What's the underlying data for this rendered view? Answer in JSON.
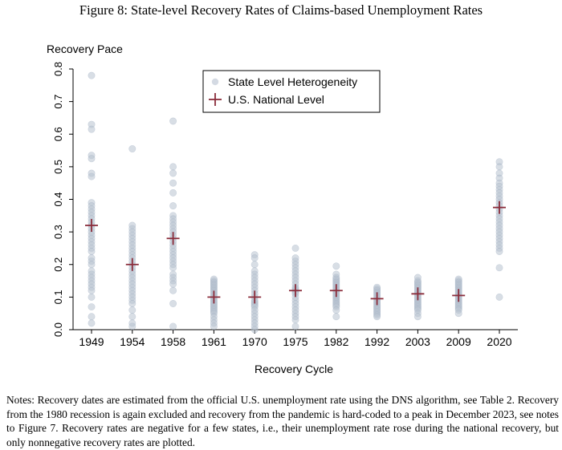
{
  "figure": {
    "title": "Figure 8: State-level Recovery Rates of Claims-based Unemployment Rates",
    "notes": "Notes: Recovery dates are estimated from the official U.S. unemployment rate using the DNS algorithm, see Table 2. Recovery from the 1980 recession is again excluded and recovery from the pandemic is hard-coded to a peak in December 2023, see notes to Figure 7. Recovery rates are negative for a few states, i.e., their unemployment rate rose during the national recovery, but only nonnegative recovery rates are plotted."
  },
  "chart_data": {
    "type": "scatter",
    "ylabel": "Recovery Pace",
    "xlabel": "Recovery Cycle",
    "categories": [
      "1949",
      "1954",
      "1958",
      "1961",
      "1970",
      "1975",
      "1982",
      "1992",
      "2003",
      "2009",
      "2020"
    ],
    "ylim": [
      0,
      0.8
    ],
    "yticks": [
      "0.0",
      "0.1",
      "0.2",
      "0.3",
      "0.4",
      "0.5",
      "0.6",
      "0.7",
      "0.8"
    ],
    "grid": false,
    "legend_position": "top-center",
    "colors": {
      "state": "#b8c2d0",
      "national": "#8b2d3b",
      "axis": "#000000"
    },
    "series": [
      {
        "name": "State Level Heterogeneity",
        "marker": "circle",
        "values": [
          [
            0.78,
            0.63,
            0.615,
            0.535,
            0.525,
            0.48,
            0.47,
            0.39,
            0.38,
            0.37,
            0.36,
            0.35,
            0.34,
            0.33,
            0.32,
            0.31,
            0.3,
            0.29,
            0.28,
            0.27,
            0.26,
            0.25,
            0.24,
            0.22,
            0.21,
            0.2,
            0.18,
            0.17,
            0.16,
            0.15,
            0.14,
            0.13,
            0.12,
            0.1,
            0.07,
            0.04,
            0.02
          ],
          [
            0.555,
            0.32,
            0.31,
            0.3,
            0.29,
            0.28,
            0.27,
            0.26,
            0.25,
            0.24,
            0.23,
            0.22,
            0.21,
            0.2,
            0.19,
            0.18,
            0.17,
            0.16,
            0.15,
            0.14,
            0.13,
            0.12,
            0.11,
            0.1,
            0.09,
            0.08,
            0.06,
            0.04,
            0.02,
            0.01
          ],
          [
            0.64,
            0.5,
            0.48,
            0.45,
            0.42,
            0.38,
            0.35,
            0.34,
            0.33,
            0.32,
            0.31,
            0.3,
            0.29,
            0.28,
            0.27,
            0.26,
            0.25,
            0.24,
            0.23,
            0.22,
            0.21,
            0.2,
            0.19,
            0.17,
            0.16,
            0.15,
            0.14,
            0.12,
            0.08,
            0.01
          ],
          [
            0.155,
            0.15,
            0.145,
            0.14,
            0.135,
            0.13,
            0.125,
            0.12,
            0.115,
            0.11,
            0.105,
            0.1,
            0.095,
            0.09,
            0.085,
            0.08,
            0.075,
            0.07,
            0.065,
            0.06,
            0.055,
            0.05,
            0.04,
            0.03,
            0.02,
            0.01
          ],
          [
            0.23,
            0.22,
            0.2,
            0.18,
            0.17,
            0.16,
            0.15,
            0.14,
            0.13,
            0.12,
            0.11,
            0.1,
            0.09,
            0.085,
            0.08,
            0.075,
            0.07,
            0.06,
            0.05,
            0.04,
            0.03,
            0.02,
            0.01,
            0.0
          ],
          [
            0.25,
            0.22,
            0.21,
            0.2,
            0.19,
            0.18,
            0.17,
            0.16,
            0.15,
            0.14,
            0.13,
            0.125,
            0.12,
            0.115,
            0.11,
            0.1,
            0.09,
            0.08,
            0.07,
            0.06,
            0.05,
            0.04,
            0.03,
            0.01
          ],
          [
            0.195,
            0.17,
            0.16,
            0.155,
            0.15,
            0.145,
            0.14,
            0.135,
            0.13,
            0.125,
            0.12,
            0.115,
            0.11,
            0.105,
            0.1,
            0.095,
            0.09,
            0.085,
            0.08,
            0.075,
            0.07,
            0.06,
            0.04
          ],
          [
            0.13,
            0.125,
            0.12,
            0.115,
            0.11,
            0.105,
            0.1,
            0.095,
            0.09,
            0.085,
            0.08,
            0.075,
            0.07,
            0.065,
            0.06,
            0.055,
            0.05,
            0.045,
            0.04
          ],
          [
            0.16,
            0.15,
            0.145,
            0.14,
            0.135,
            0.13,
            0.125,
            0.12,
            0.115,
            0.11,
            0.105,
            0.1,
            0.095,
            0.09,
            0.085,
            0.08,
            0.075,
            0.07,
            0.065,
            0.06,
            0.05,
            0.04
          ],
          [
            0.155,
            0.15,
            0.145,
            0.14,
            0.135,
            0.13,
            0.125,
            0.12,
            0.115,
            0.11,
            0.105,
            0.1,
            0.095,
            0.09,
            0.085,
            0.08,
            0.075,
            0.07,
            0.065,
            0.06,
            0.05
          ],
          [
            0.515,
            0.5,
            0.48,
            0.465,
            0.45,
            0.44,
            0.43,
            0.42,
            0.41,
            0.4,
            0.39,
            0.38,
            0.37,
            0.36,
            0.35,
            0.34,
            0.33,
            0.32,
            0.31,
            0.3,
            0.29,
            0.28,
            0.27,
            0.26,
            0.25,
            0.24,
            0.19,
            0.1
          ]
        ]
      },
      {
        "name": "U.S. National Level",
        "marker": "plus",
        "values": [
          0.32,
          0.2,
          0.28,
          0.1,
          0.1,
          0.12,
          0.12,
          0.095,
          0.11,
          0.105,
          0.375
        ]
      }
    ]
  }
}
